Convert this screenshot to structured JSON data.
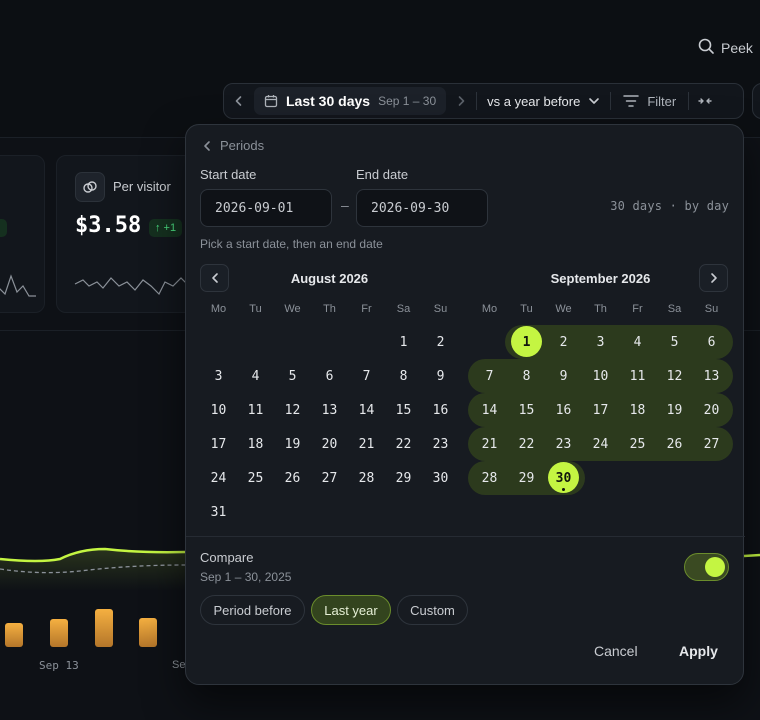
{
  "header": {
    "peek_label": "Peek",
    "range_label": "Last 30 days",
    "range_sub": "Sep 1 – 30",
    "compare_label": "vs a year before",
    "filter_label": "Filter"
  },
  "card": {
    "label": "Per visitor",
    "value": "$3.58",
    "delta": "↑ +1"
  },
  "chart_axis": {
    "label_1": "Sep 13",
    "label_2": "Se"
  },
  "popover": {
    "back_label": "Periods",
    "start_label": "Start date",
    "end_label": "End date",
    "start_value": "2026-09-01",
    "end_value": "2026-09-30",
    "dash": "–",
    "range_info": "30 days · by day",
    "hint": "Pick a start date, then an end date",
    "weekdays": [
      "Mo",
      "Tu",
      "We",
      "Th",
      "Fr",
      "Sa",
      "Su"
    ],
    "months": [
      {
        "title": "August 2026",
        "offset": 5,
        "days": 31
      },
      {
        "title": "September 2026",
        "offset": 1,
        "days": 30,
        "range_start": 1,
        "range_end": 30
      }
    ],
    "compare_title": "Compare",
    "compare_range": "Sep 1 – 30, 2025",
    "compare_enabled": true,
    "chips": [
      {
        "label": "Period before",
        "active": false
      },
      {
        "label": "Last year",
        "active": true
      },
      {
        "label": "Custom",
        "active": false
      }
    ],
    "cancel_label": "Cancel",
    "apply_label": "Apply"
  },
  "colors": {
    "accent": "#c4f542",
    "range_band": "#2c3a1d"
  }
}
